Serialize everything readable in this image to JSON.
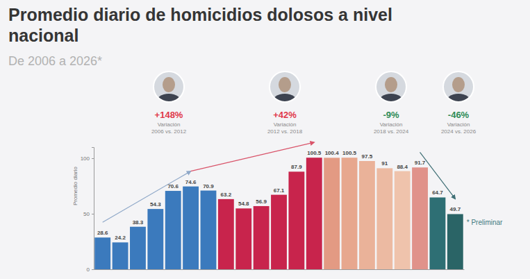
{
  "chart_data": {
    "type": "bar",
    "title": "Promedio diario de homicidios dolosos a nivel nacional",
    "subtitle": "De 2006 a 2026*",
    "y_label": "Promedio diario",
    "categories": [
      null,
      null,
      null,
      null,
      null,
      null,
      null,
      null,
      null,
      null,
      null,
      null,
      null,
      null,
      null,
      null,
      null,
      null,
      null,
      null,
      null
    ],
    "values": [
      28.6,
      24.2,
      38.3,
      54.3,
      70.6,
      74.6,
      70.9,
      63.2,
      54.8,
      56.9,
      67.1,
      87.9,
      100.5,
      100.4,
      100.5,
      97.5,
      91.0,
      88.4,
      91.7,
      64.7,
      49.7
    ],
    "colors": [
      "#3b7abd",
      "#3b7abd",
      "#3b7abd",
      "#3b7abd",
      "#3b7abd",
      "#3b7abd",
      "#3b7abd",
      "#c8244c",
      "#c8244c",
      "#c8244c",
      "#c8244c",
      "#c8244c",
      "#c8244c",
      "#e39a83",
      "#e7a78e",
      "#eab299",
      "#ecbaa2",
      "#efc3ac",
      "#e0928a",
      "#2e6f74",
      "#2a6466"
    ],
    "ylim": [
      0,
      110
    ],
    "yticks": [
      0,
      50,
      100
    ],
    "grid": false,
    "data_labels": true,
    "tick_labels": "y",
    "annotations": [
      {
        "text": "+148%",
        "detail": [
          "Variación",
          "2006 vs. 2012"
        ]
      },
      {
        "text": "+42%",
        "detail": [
          "Variación",
          "2012 vs. 2018"
        ]
      },
      {
        "text": "-9%",
        "detail": [
          "Variación",
          "2018 vs. 2024"
        ]
      },
      {
        "text": "-46%",
        "detail": [
          "Variación",
          "2024 vs. 2026"
        ]
      }
    ],
    "note": "* Preliminar"
  }
}
